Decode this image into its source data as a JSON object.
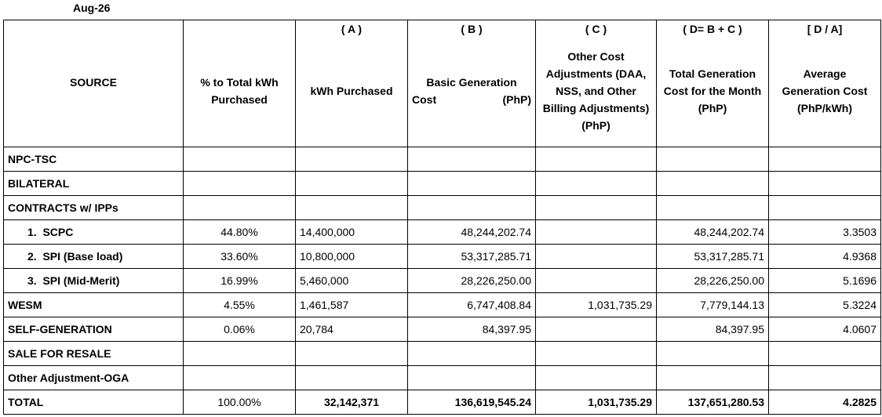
{
  "period": "Aug-26",
  "headers": {
    "source": "SOURCE",
    "pct": "% to Total kWh Purchased",
    "kwh_tag": "( A )",
    "kwh": "kWh Purchased",
    "basic_tag": "( B )",
    "basic_line1": "Basic Generation",
    "basic_line2a": "Cost",
    "basic_line2b": "(PhP)",
    "other_tag": "( C )",
    "other": "Other Cost Adjustments (DAA, NSS, and Other Billing Adjustments) (PhP)",
    "total_tag": "( D= B + C )",
    "total": "Total Generation Cost for the Month (PhP)",
    "avg_tag": "[ D / A]",
    "avg": "Average Generation Cost (PhP/kWh)"
  },
  "rows": {
    "npc": {
      "source": "NPC-TSC",
      "pct": "",
      "kwh": "",
      "basic": "",
      "other": "",
      "total": "",
      "avg": ""
    },
    "bilateral1": {
      "source": "BILATERAL"
    },
    "bilateral2": {
      "source": "CONTRACTS w/ IPPs"
    },
    "scpc": {
      "num": "1.",
      "source": "SCPC",
      "pct": "44.80%",
      "kwh": "14,400,000",
      "basic": "48,244,202.74",
      "other": "",
      "total": "48,244,202.74",
      "avg": "3.3503"
    },
    "spi_base": {
      "num": "2.",
      "source": "SPI (Base load)",
      "pct": "33.60%",
      "kwh": "10,800,000",
      "basic": "53,317,285.71",
      "other": "",
      "total": "53,317,285.71",
      "avg": "4.9368"
    },
    "spi_mid": {
      "num": "3.",
      "source": "SPI (Mid-Merit)",
      "pct": "16.99%",
      "kwh": "5,460,000",
      "basic": "28,226,250.00",
      "other": "",
      "total": "28,226,250.00",
      "avg": "5.1696"
    },
    "wesm": {
      "source": "WESM",
      "pct": "4.55%",
      "kwh": "1,461,587",
      "basic": "6,747,408.84",
      "other": "1,031,735.29",
      "total": "7,779,144.13",
      "avg": "5.3224"
    },
    "selfgen": {
      "source": "SELF-GENERATION",
      "pct": "0.06%",
      "kwh": "20,784",
      "basic": "84,397.95",
      "other": "",
      "total": "84,397.95",
      "avg": "4.0607"
    },
    "resale": {
      "source": "SALE FOR RESALE"
    },
    "oga": {
      "source": "Other Adjustment-OGA"
    },
    "total": {
      "source": "TOTAL",
      "pct": "100.00%",
      "kwh": "32,142,371",
      "basic": "136,619,545.24",
      "other": "1,031,735.29",
      "total": "137,651,280.53",
      "avg": "4.2825"
    }
  }
}
